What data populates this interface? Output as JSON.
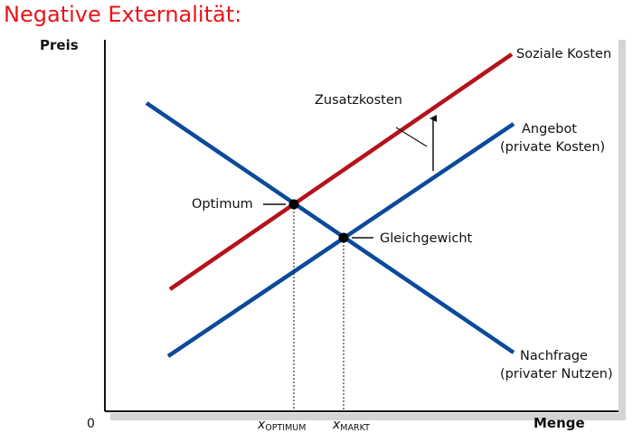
{
  "title": "Negative Externalität:",
  "axes": {
    "y_label": "Preis",
    "x_label": "Menge",
    "origin_label": "0",
    "x_ticks": [
      {
        "main": "x",
        "sub": "OPTIMUM"
      },
      {
        "main": "x",
        "sub": "MARKT"
      }
    ]
  },
  "curves": {
    "social_cost": {
      "label": "Soziale Kosten",
      "color": "#b5121b"
    },
    "supply": {
      "label_line1": "Angebot",
      "label_line2": "(private Kosten)",
      "color": "#0b4a9a"
    },
    "demand": {
      "label_line1": "Nachfrage",
      "label_line2": "(privater Nutzen)",
      "color": "#0b4a9a"
    }
  },
  "annotations": {
    "extra_cost": "Zusatzkosten",
    "optimum": "Optimum",
    "equilibrium": "Gleichgewicht"
  },
  "colors": {
    "title": "#e8141b",
    "axis": "#111111",
    "shadow": "#d4d4d4"
  }
}
